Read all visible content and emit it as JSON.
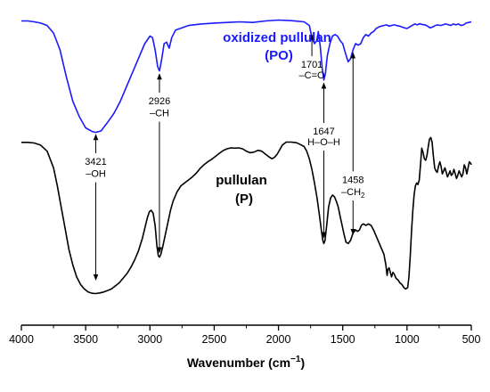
{
  "chart_data": {
    "type": "line",
    "title": "",
    "xlabel": "Wavenumber (cm",
    "xlabel_sup": "−1",
    "xlabel_end": ")",
    "ylabel": "",
    "xlim": [
      4000,
      500
    ],
    "x_reversed": true,
    "ylim": [
      0,
      1
    ],
    "grid": false,
    "x_ticks": [
      4000,
      3500,
      3000,
      2500,
      2000,
      1500,
      1000,
      500
    ],
    "x_tick_labels": [
      "4000",
      "3500",
      "3000",
      "2500",
      "2000",
      "1500",
      "1000",
      "500"
    ],
    "colors": {
      "po": "#1a1aff",
      "p": "#000000"
    },
    "series": [
      {
        "name": "oxidized pullulan (PO)",
        "label_line1": "oxidized pullulan",
        "label_line2": "(PO)",
        "color": "#1a1aff",
        "points": [
          [
            4000,
            0.975
          ],
          [
            3950,
            0.975
          ],
          [
            3900,
            0.972
          ],
          [
            3850,
            0.968
          ],
          [
            3800,
            0.96
          ],
          [
            3750,
            0.935
          ],
          [
            3700,
            0.88
          ],
          [
            3650,
            0.79
          ],
          [
            3600,
            0.71
          ],
          [
            3550,
            0.66
          ],
          [
            3500,
            0.622
          ],
          [
            3450,
            0.61
          ],
          [
            3421,
            0.607
          ],
          [
            3380,
            0.612
          ],
          [
            3330,
            0.64
          ],
          [
            3280,
            0.67
          ],
          [
            3230,
            0.71
          ],
          [
            3180,
            0.76
          ],
          [
            3130,
            0.81
          ],
          [
            3080,
            0.86
          ],
          [
            3040,
            0.9
          ],
          [
            3000,
            0.925
          ],
          [
            2980,
            0.92
          ],
          [
            2960,
            0.88
          ],
          [
            2940,
            0.825
          ],
          [
            2926,
            0.81
          ],
          [
            2910,
            0.845
          ],
          [
            2890,
            0.9
          ],
          [
            2870,
            0.905
          ],
          [
            2850,
            0.885
          ],
          [
            2830,
            0.92
          ],
          [
            2800,
            0.945
          ],
          [
            2700,
            0.96
          ],
          [
            2600,
            0.965
          ],
          [
            2500,
            0.968
          ],
          [
            2400,
            0.97
          ],
          [
            2300,
            0.972
          ],
          [
            2200,
            0.97
          ],
          [
            2100,
            0.975
          ],
          [
            2000,
            0.978
          ],
          [
            1900,
            0.976
          ],
          [
            1800,
            0.972
          ],
          [
            1760,
            0.96
          ],
          [
            1740,
            0.92
          ],
          [
            1720,
            0.9
          ],
          [
            1701,
            0.91
          ],
          [
            1690,
            0.94
          ],
          [
            1675,
            0.89
          ],
          [
            1660,
            0.82
          ],
          [
            1647,
            0.78
          ],
          [
            1635,
            0.8
          ],
          [
            1620,
            0.86
          ],
          [
            1600,
            0.9
          ],
          [
            1580,
            0.925
          ],
          [
            1560,
            0.93
          ],
          [
            1540,
            0.925
          ],
          [
            1520,
            0.91
          ],
          [
            1500,
            0.9
          ],
          [
            1480,
            0.87
          ],
          [
            1458,
            0.84
          ],
          [
            1440,
            0.85
          ],
          [
            1420,
            0.88
          ],
          [
            1400,
            0.9
          ],
          [
            1380,
            0.895
          ],
          [
            1360,
            0.9
          ],
          [
            1340,
            0.92
          ],
          [
            1320,
            0.93
          ],
          [
            1300,
            0.925
          ],
          [
            1280,
            0.935
          ],
          [
            1260,
            0.94
          ],
          [
            1240,
            0.95
          ],
          [
            1220,
            0.955
          ],
          [
            1200,
            0.958
          ],
          [
            1180,
            0.96
          ],
          [
            1160,
            0.962
          ],
          [
            1140,
            0.958
          ],
          [
            1120,
            0.96
          ],
          [
            1100,
            0.962
          ],
          [
            1080,
            0.96
          ],
          [
            1060,
            0.958
          ],
          [
            1040,
            0.955
          ],
          [
            1020,
            0.952
          ],
          [
            1000,
            0.95
          ],
          [
            980,
            0.955
          ],
          [
            960,
            0.96
          ],
          [
            940,
            0.965
          ],
          [
            920,
            0.962
          ],
          [
            900,
            0.966
          ],
          [
            880,
            0.963
          ],
          [
            860,
            0.962
          ],
          [
            840,
            0.958
          ],
          [
            820,
            0.952
          ],
          [
            800,
            0.955
          ],
          [
            780,
            0.96
          ],
          [
            760,
            0.962
          ],
          [
            740,
            0.96
          ],
          [
            720,
            0.962
          ],
          [
            700,
            0.965
          ],
          [
            680,
            0.963
          ],
          [
            660,
            0.96
          ],
          [
            640,
            0.965
          ],
          [
            620,
            0.962
          ],
          [
            600,
            0.965
          ],
          [
            580,
            0.96
          ],
          [
            560,
            0.962
          ],
          [
            540,
            0.968
          ],
          [
            520,
            0.97
          ],
          [
            500,
            0.972
          ]
        ]
      },
      {
        "name": "pullulan (P)",
        "label_line1": "pullulan",
        "label_line2": "(P)",
        "color": "#000000",
        "points": [
          [
            4000,
            0.574
          ],
          [
            3950,
            0.574
          ],
          [
            3900,
            0.572
          ],
          [
            3850,
            0.565
          ],
          [
            3800,
            0.545
          ],
          [
            3750,
            0.49
          ],
          [
            3720,
            0.43
          ],
          [
            3690,
            0.36
          ],
          [
            3660,
            0.29
          ],
          [
            3630,
            0.22
          ],
          [
            3600,
            0.17
          ],
          [
            3570,
            0.13
          ],
          [
            3540,
            0.105
          ],
          [
            3510,
            0.09
          ],
          [
            3480,
            0.08
          ],
          [
            3450,
            0.076
          ],
          [
            3421,
            0.075
          ],
          [
            3390,
            0.077
          ],
          [
            3360,
            0.08
          ],
          [
            3330,
            0.085
          ],
          [
            3300,
            0.09
          ],
          [
            3270,
            0.1
          ],
          [
            3240,
            0.11
          ],
          [
            3210,
            0.125
          ],
          [
            3180,
            0.14
          ],
          [
            3150,
            0.16
          ],
          [
            3120,
            0.185
          ],
          [
            3090,
            0.215
          ],
          [
            3060,
            0.255
          ],
          [
            3040,
            0.29
          ],
          [
            3020,
            0.325
          ],
          [
            3005,
            0.345
          ],
          [
            2990,
            0.35
          ],
          [
            2975,
            0.34
          ],
          [
            2960,
            0.3
          ],
          [
            2945,
            0.23
          ],
          [
            2935,
            0.2
          ],
          [
            2926,
            0.195
          ],
          [
            2915,
            0.205
          ],
          [
            2900,
            0.23
          ],
          [
            2880,
            0.27
          ],
          [
            2860,
            0.31
          ],
          [
            2840,
            0.35
          ],
          [
            2820,
            0.38
          ],
          [
            2790,
            0.41
          ],
          [
            2760,
            0.43
          ],
          [
            2730,
            0.44
          ],
          [
            2700,
            0.45
          ],
          [
            2670,
            0.46
          ],
          [
            2640,
            0.472
          ],
          [
            2610,
            0.488
          ],
          [
            2580,
            0.5
          ],
          [
            2550,
            0.51
          ],
          [
            2520,
            0.518
          ],
          [
            2490,
            0.528
          ],
          [
            2460,
            0.538
          ],
          [
            2430,
            0.547
          ],
          [
            2400,
            0.553
          ],
          [
            2370,
            0.556
          ],
          [
            2340,
            0.555
          ],
          [
            2310,
            0.556
          ],
          [
            2280,
            0.553
          ],
          [
            2250,
            0.545
          ],
          [
            2220,
            0.54
          ],
          [
            2190,
            0.542
          ],
          [
            2160,
            0.548
          ],
          [
            2130,
            0.545
          ],
          [
            2100,
            0.535
          ],
          [
            2070,
            0.525
          ],
          [
            2050,
            0.52
          ],
          [
            2030,
            0.525
          ],
          [
            2010,
            0.535
          ],
          [
            1990,
            0.55
          ],
          [
            1970,
            0.565
          ],
          [
            1940,
            0.575
          ],
          [
            1900,
            0.575
          ],
          [
            1860,
            0.573
          ],
          [
            1830,
            0.567
          ],
          [
            1800,
            0.56
          ],
          [
            1780,
            0.545
          ],
          [
            1760,
            0.52
          ],
          [
            1740,
            0.485
          ],
          [
            1720,
            0.44
          ],
          [
            1700,
            0.39
          ],
          [
            1680,
            0.33
          ],
          [
            1665,
            0.28
          ],
          [
            1655,
            0.25
          ],
          [
            1647,
            0.24
          ],
          [
            1638,
            0.25
          ],
          [
            1625,
            0.3
          ],
          [
            1610,
            0.36
          ],
          [
            1595,
            0.39
          ],
          [
            1580,
            0.4
          ],
          [
            1565,
            0.395
          ],
          [
            1550,
            0.38
          ],
          [
            1535,
            0.36
          ],
          [
            1520,
            0.33
          ],
          [
            1505,
            0.3
          ],
          [
            1490,
            0.27
          ],
          [
            1475,
            0.245
          ],
          [
            1458,
            0.24
          ],
          [
            1440,
            0.25
          ],
          [
            1420,
            0.275
          ],
          [
            1400,
            0.285
          ],
          [
            1385,
            0.28
          ],
          [
            1370,
            0.285
          ],
          [
            1355,
            0.3
          ],
          [
            1340,
            0.305
          ],
          [
            1320,
            0.3
          ],
          [
            1300,
            0.305
          ],
          [
            1280,
            0.3
          ],
          [
            1260,
            0.285
          ],
          [
            1240,
            0.265
          ],
          [
            1220,
            0.245
          ],
          [
            1200,
            0.225
          ],
          [
            1180,
            0.205
          ],
          [
            1165,
            0.17
          ],
          [
            1155,
            0.135
          ],
          [
            1148,
            0.155
          ],
          [
            1140,
            0.16
          ],
          [
            1130,
            0.145
          ],
          [
            1120,
            0.13
          ],
          [
            1110,
            0.145
          ],
          [
            1100,
            0.14
          ],
          [
            1085,
            0.125
          ],
          [
            1070,
            0.12
          ],
          [
            1055,
            0.11
          ],
          [
            1040,
            0.105
          ],
          [
            1025,
            0.095
          ],
          [
            1010,
            0.09
          ],
          [
            995,
            0.095
          ],
          [
            985,
            0.13
          ],
          [
            975,
            0.2
          ],
          [
            965,
            0.28
          ],
          [
            955,
            0.35
          ],
          [
            945,
            0.4
          ],
          [
            935,
            0.43
          ],
          [
            925,
            0.44
          ],
          [
            915,
            0.435
          ],
          [
            905,
            0.45
          ],
          [
            895,
            0.5
          ],
          [
            885,
            0.555
          ],
          [
            875,
            0.54
          ],
          [
            865,
            0.52
          ],
          [
            855,
            0.515
          ],
          [
            845,
            0.53
          ],
          [
            835,
            0.56
          ],
          [
            825,
            0.585
          ],
          [
            815,
            0.59
          ],
          [
            805,
            0.575
          ],
          [
            795,
            0.53
          ],
          [
            785,
            0.49
          ],
          [
            775,
            0.48
          ],
          [
            765,
            0.475
          ],
          [
            755,
            0.495
          ],
          [
            745,
            0.51
          ],
          [
            735,
            0.495
          ],
          [
            725,
            0.47
          ],
          [
            715,
            0.48
          ],
          [
            705,
            0.49
          ],
          [
            695,
            0.475
          ],
          [
            685,
            0.46
          ],
          [
            675,
            0.47
          ],
          [
            665,
            0.48
          ],
          [
            655,
            0.465
          ],
          [
            645,
            0.47
          ],
          [
            635,
            0.485
          ],
          [
            625,
            0.47
          ],
          [
            615,
            0.455
          ],
          [
            605,
            0.465
          ],
          [
            595,
            0.48
          ],
          [
            585,
            0.47
          ],
          [
            575,
            0.46
          ],
          [
            565,
            0.47
          ],
          [
            555,
            0.5
          ],
          [
            545,
            0.49
          ],
          [
            535,
            0.47
          ],
          [
            525,
            0.49
          ],
          [
            515,
            0.51
          ],
          [
            505,
            0.505
          ],
          [
            500,
            0.5
          ]
        ]
      }
    ],
    "annotations": [
      {
        "id": "oh",
        "line1": "3421",
        "line2": "–OH",
        "x": 3421,
        "dir": "both",
        "line_from": 0.6,
        "line_to": 0.12,
        "text_y1": 0.5,
        "text_y2": 0.46
      },
      {
        "id": "ch",
        "line1": "2926",
        "line2": "–CH",
        "x": 2926,
        "dir": "both",
        "line_from": 0.8,
        "line_to": 0.21,
        "text_y1": 0.7,
        "text_y2": 0.66
      },
      {
        "id": "co",
        "line1": "1701",
        "line2": "–C=O",
        "x": 1740,
        "dir": "up",
        "line_from": 0.9,
        "line_to": 0.89,
        "text_y1": 0.82,
        "text_y2": 0.785
      },
      {
        "id": "hoh",
        "line1": "1647",
        "line2": "H–O–H",
        "x": 1647,
        "dir": "both",
        "line_from": 0.77,
        "line_to": 0.26,
        "text_y1": 0.6,
        "text_y2": 0.565
      },
      {
        "id": "ch2",
        "line1": "1458",
        "line2": "–CH",
        "line2_sub": "2",
        "x": 1420,
        "dir": "both",
        "line_from": 0.87,
        "line_to": 0.27,
        "text_y1": 0.44,
        "text_y2": 0.4
      }
    ]
  }
}
